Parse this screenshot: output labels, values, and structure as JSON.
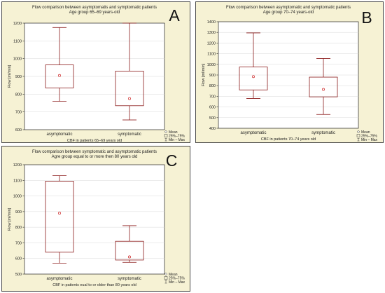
{
  "colors": {
    "panel_bg": "#f6f2d4",
    "plot_bg": "#ffffff",
    "box": "#8b1a1a",
    "mean_marker": "#cc2222",
    "axis": "#222222",
    "grid": "#d8d8d8"
  },
  "legend": {
    "mean": "Mean",
    "iqr": "25%–75%",
    "range": "Min – Max"
  },
  "chart_data": [
    {
      "panel": "A",
      "type": "box",
      "title": "Flow comparison between asymptomatis and symptomatic patients",
      "subtitle": "Age group 65–69 years-old",
      "ylabel": "Flow [ml/min]",
      "xlabel": "CBF in patients 65–69 years old",
      "ylim": [
        600,
        1200
      ],
      "yticks": [
        600,
        700,
        800,
        900,
        1000,
        1100,
        1200
      ],
      "grid": true,
      "legend_position": "bottom-right",
      "categories": [
        "asymptomatic",
        "symptomatic"
      ],
      "boxes": [
        {
          "category": "asymptomatic",
          "min": 760,
          "q1": 835,
          "mean": 905,
          "q3": 965,
          "max": 1175
        },
        {
          "category": "symptomatic",
          "min": 655,
          "q1": 735,
          "mean": 775,
          "q3": 930,
          "max": 1200
        }
      ]
    },
    {
      "panel": "B",
      "type": "box",
      "title": "Flow comparison between asymptomatic and symptomatic patients",
      "subtitle": "Age group 70–74 years-old",
      "ylabel": "Flow [ml/min]",
      "xlabel": "CBF in patients 70–74 years old",
      "ylim": [
        400,
        1400
      ],
      "yticks": [
        400,
        500,
        600,
        700,
        800,
        900,
        1000,
        1100,
        1200,
        1300,
        1400
      ],
      "grid": true,
      "legend_position": "bottom-right",
      "categories": [
        "asymptomatic",
        "symptomatic"
      ],
      "boxes": [
        {
          "category": "asymptomatic",
          "min": 680,
          "q1": 760,
          "mean": 885,
          "q3": 975,
          "max": 1295
        },
        {
          "category": "symptomatic",
          "min": 530,
          "q1": 695,
          "mean": 765,
          "q3": 880,
          "max": 1055
        }
      ]
    },
    {
      "panel": "C",
      "type": "box",
      "title": "Flow comparison between symptomatic and asymptomatic patients",
      "subtitle": "Agre group equal to or more then 80 years old",
      "ylabel": "Flow [ml/min]",
      "xlabel": "CBF in patients eual to or older than 80 years old",
      "ylim": [
        500,
        1200
      ],
      "yticks": [
        500,
        600,
        700,
        800,
        900,
        1000,
        1100,
        1200
      ],
      "grid": true,
      "legend_position": "bottom-right",
      "categories": [
        "asymptomatic",
        "symptomatic"
      ],
      "boxes": [
        {
          "category": "asymptomatic",
          "min": 570,
          "q1": 640,
          "mean": 890,
          "q3": 1095,
          "max": 1130
        },
        {
          "category": "symptomatic",
          "min": 575,
          "q1": 590,
          "mean": 610,
          "q3": 710,
          "max": 810
        }
      ]
    }
  ]
}
